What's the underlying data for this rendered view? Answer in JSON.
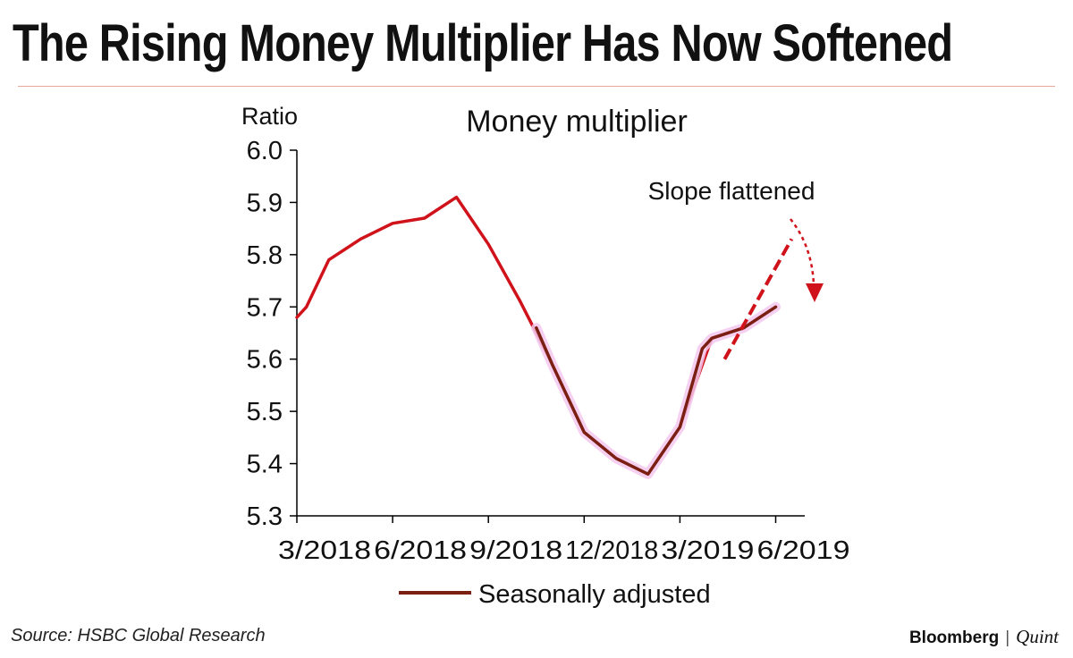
{
  "headline": "The Rising Money Multiplier Has Now Softened",
  "source": "Source: HSBC Global Research",
  "brand": {
    "name": "Bloomberg",
    "separator": "|",
    "sub": "Quint"
  },
  "colors": {
    "main_line": "#d0121b",
    "seasonal_line": "#7a1f12",
    "seasonal_glow": "#f3c8ee",
    "annotation": "#d0121b",
    "rule": "#e8a89a"
  },
  "chart_data": {
    "type": "line",
    "title": "Money multiplier",
    "ylabel": "Ratio",
    "xlabel": "",
    "ylim": [
      5.3,
      6.0
    ],
    "yticks": [
      "5.3",
      "5.4",
      "5.5",
      "5.6",
      "5.7",
      "5.8",
      "5.9",
      "6.0"
    ],
    "xticks": [
      {
        "label": "3/2018",
        "index": 0
      },
      {
        "label": "6/2018",
        "index": 3
      },
      {
        "label": "9/2018",
        "index": 6
      },
      {
        "label": "12/2018",
        "index": 9
      },
      {
        "label": "3/2019",
        "index": 12
      },
      {
        "label": "6/2019",
        "index": 15
      }
    ],
    "series": [
      {
        "name": "Money multiplier",
        "x": [
          0,
          0.3,
          1,
          2,
          3,
          4,
          5,
          6,
          7,
          8,
          9,
          10,
          11,
          12,
          13,
          14,
          15
        ],
        "values": [
          5.68,
          5.7,
          5.79,
          5.83,
          5.86,
          5.87,
          5.91,
          5.82,
          5.71,
          5.59,
          5.46,
          5.41,
          5.38,
          5.47,
          5.64,
          5.66,
          5.7
        ]
      },
      {
        "name": "Seasonally adjusted",
        "x": [
          7.5,
          8,
          9,
          10,
          11,
          12,
          12.7,
          13,
          14,
          15
        ],
        "values": [
          5.66,
          5.59,
          5.46,
          5.41,
          5.38,
          5.47,
          5.62,
          5.64,
          5.66,
          5.7
        ]
      }
    ],
    "legend": {
      "label": "Seasonally adjusted",
      "position": "bottom"
    },
    "annotation": {
      "text": "Slope flattened",
      "extrapolated_trend": {
        "x": [
          13.4,
          15.5
        ],
        "values": [
          5.6,
          5.83
        ]
      }
    }
  }
}
